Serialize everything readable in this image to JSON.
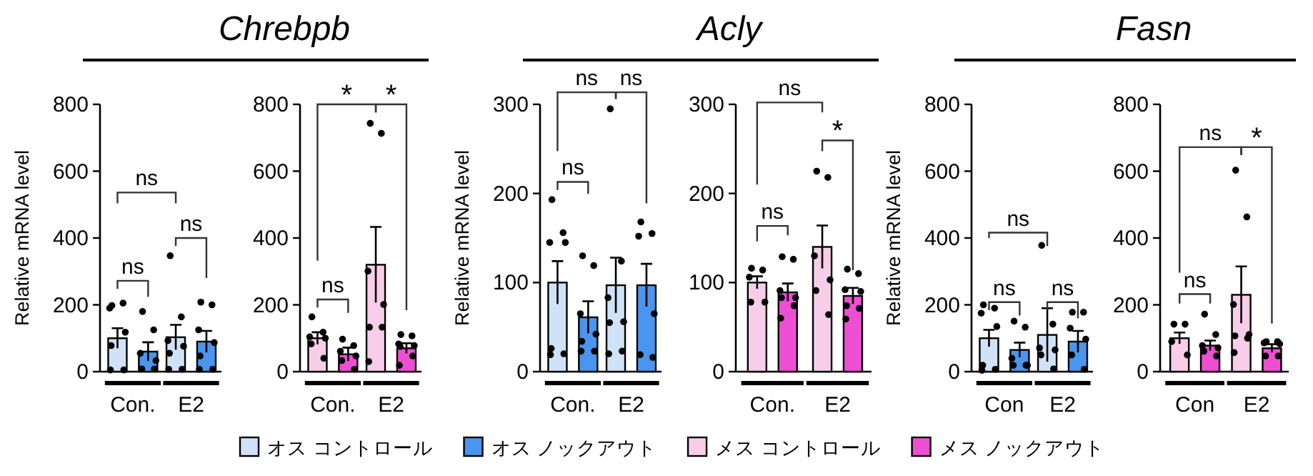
{
  "chart_data": [
    {
      "type": "other",
      "annotations": [
        "Chrebpb",
        "Acly",
        "Fasn"
      ]
    },
    {
      "type": "bar",
      "ylabel": "Relative mRNA level",
      "categories": [
        "Con.",
        "E2"
      ],
      "ylim": [
        0,
        800
      ],
      "yticks": [
        0,
        200,
        400,
        600,
        800
      ],
      "legend": "bottom",
      "annotations": [
        "ns",
        "ns",
        "ns"
      ],
      "series": [
        {
          "name": "オス コントロール",
          "type": "bar",
          "color": "#cfe2f7",
          "values": [
            100,
            103
          ],
          "errors": [
            30,
            37
          ]
        },
        {
          "name": "オス ノックアウト",
          "type": "bar",
          "color": "#4a95ee",
          "values": [
            60,
            90
          ],
          "errors": [
            28,
            32
          ]
        },
        {
          "type": "scatter",
          "color": "#000000",
          "x": [
            "Con.",
            "Con.",
            "Con.",
            "Con.",
            "Con.",
            "Con.",
            "Con.",
            "E2",
            "E2",
            "E2",
            "E2",
            "E2",
            "E2",
            "E2"
          ],
          "values": [
            198,
            205,
            190,
            118,
            78,
            5,
            5,
            347,
            164,
            93,
            76,
            55,
            7,
            7
          ]
        },
        {
          "type": "scatter",
          "color": "#000000",
          "x": [
            "Con.",
            "Con.",
            "Con.",
            "Con.",
            "Con.",
            "Con.",
            "E2",
            "E2",
            "E2",
            "E2",
            "E2",
            "E2",
            "E2"
          ],
          "values": [
            180,
            125,
            55,
            33,
            8,
            8,
            208,
            200,
            125,
            87,
            47,
            7,
            7
          ]
        }
      ]
    },
    {
      "type": "bar",
      "categories": [
        "Con.",
        "E2"
      ],
      "ylim": [
        0,
        800
      ],
      "yticks": [
        0,
        200,
        400,
        600,
        800
      ],
      "legend": "bottom",
      "annotations": [
        "*",
        "*",
        "ns"
      ],
      "series": [
        {
          "name": "メス コントロール",
          "type": "bar",
          "color": "#f8cde9",
          "values": [
            100,
            320
          ],
          "errors": [
            18,
            113
          ]
        },
        {
          "name": "メス ノックアウト",
          "type": "bar",
          "color": "#ee4fd2",
          "values": [
            52,
            70
          ],
          "errors": [
            20,
            15
          ]
        },
        {
          "type": "scatter",
          "color": "#000000",
          "x": [
            "Con.",
            "Con.",
            "Con.",
            "Con.",
            "Con.",
            "Con.",
            "E2",
            "E2",
            "E2",
            "E2",
            "E2",
            "E2",
            "E2"
          ],
          "values": [
            164,
            118,
            104,
            100,
            83,
            40,
            743,
            713,
            301,
            201,
            133,
            133,
            30
          ]
        },
        {
          "type": "scatter",
          "color": "#000000",
          "x": [
            "Con.",
            "Con.",
            "Con.",
            "Con.",
            "Con.",
            "Con.",
            "E2",
            "E2",
            "E2",
            "E2",
            "E2",
            "E2",
            "E2"
          ],
          "values": [
            97,
            78,
            61,
            47,
            33,
            7,
            111,
            107,
            83,
            78,
            75,
            47,
            19
          ]
        }
      ]
    },
    {
      "type": "bar",
      "ylabel": "Relative mRNA level",
      "categories": [
        "Con.",
        "E2"
      ],
      "ylim": [
        0,
        300
      ],
      "yticks": [
        0,
        100,
        200,
        300
      ],
      "legend": "bottom",
      "annotations": [
        "ns",
        "ns",
        "ns"
      ],
      "series": [
        {
          "name": "オス コントロール",
          "type": "bar",
          "color": "#cfe2f7",
          "values": [
            100,
            97
          ],
          "errors": [
            24,
            31
          ]
        },
        {
          "name": "オス ノックアウト",
          "type": "bar",
          "color": "#4a95ee",
          "values": [
            61,
            97
          ],
          "errors": [
            18,
            24
          ]
        },
        {
          "type": "scatter",
          "color": "#000000",
          "x": [
            "Con.",
            "Con.",
            "Con.",
            "Con.",
            "Con.",
            "Con.",
            "Con.",
            "E2",
            "E2",
            "E2",
            "E2",
            "E2",
            "E2",
            "E2"
          ],
          "values": [
            193,
            156,
            145,
            145,
            26,
            20,
            19,
            295,
            124,
            83,
            56,
            55,
            23,
            20
          ]
        },
        {
          "type": "scatter",
          "color": "#000000",
          "x": [
            "Con.",
            "Con.",
            "Con.",
            "Con.",
            "Con.",
            "Con.",
            "Con.",
            "E2",
            "E2",
            "E2",
            "E2",
            "E2",
            "E2"
          ],
          "values": [
            130,
            119,
            65,
            42,
            34,
            23,
            23,
            168,
            155,
            152,
            65,
            19,
            16
          ]
        }
      ]
    },
    {
      "type": "bar",
      "categories": [
        "Con.",
        "E2"
      ],
      "ylim": [
        0,
        300
      ],
      "yticks": [
        0,
        100,
        200,
        300
      ],
      "legend": "bottom",
      "annotations": [
        "ns",
        "*",
        "ns"
      ],
      "series": [
        {
          "name": "メス コントロール",
          "type": "bar",
          "color": "#f8cde9",
          "values": [
            100,
            140
          ],
          "errors": [
            7,
            24
          ]
        },
        {
          "name": "メス ノックアウト",
          "type": "bar",
          "color": "#ee4fd2",
          "values": [
            89,
            85
          ],
          "errors": [
            10,
            9
          ]
        },
        {
          "type": "scatter",
          "color": "#000000",
          "x": [
            "Con.",
            "Con.",
            "Con.",
            "Con.",
            "Con.",
            "E2",
            "E2",
            "E2",
            "E2",
            "E2",
            "E2"
          ],
          "values": [
            116,
            114,
            106,
            78,
            78,
            225,
            218,
            130,
            103,
            91,
            64
          ]
        },
        {
          "type": "scatter",
          "color": "#000000",
          "x": [
            "Con.",
            "Con.",
            "Con.",
            "Con.",
            "Con.",
            "Con.",
            "Con.",
            "E2",
            "E2",
            "E2",
            "E2",
            "E2",
            "E2",
            "E2"
          ],
          "values": [
            129,
            126,
            91,
            83,
            83,
            74,
            60,
            115,
            110,
            92,
            90,
            74,
            71,
            59
          ]
        }
      ]
    },
    {
      "type": "bar",
      "ylabel": "Relative mRNA level",
      "categories": [
        "Con",
        "E2"
      ],
      "ylim": [
        0,
        800
      ],
      "yticks": [
        0,
        200,
        400,
        600,
        800
      ],
      "legend": "bottom",
      "annotations": [
        "ns",
        "ns",
        "ns"
      ],
      "series": [
        {
          "name": "オス コントロール",
          "type": "bar",
          "color": "#cfe2f7",
          "values": [
            100,
            110
          ],
          "errors": [
            25,
            80
          ]
        },
        {
          "name": "オス ノックアウト",
          "type": "bar",
          "color": "#4a95ee",
          "values": [
            65,
            90
          ],
          "errors": [
            22,
            32
          ]
        },
        {
          "type": "scatter",
          "color": "#000000",
          "x": [
            "Con",
            "Con",
            "Con",
            "Con",
            "Con",
            "Con",
            "Con",
            "E2",
            "E2",
            "E2",
            "E2",
            "E2",
            "E2"
          ],
          "values": [
            200,
            190,
            175,
            135,
            19,
            7,
            4,
            378,
            142,
            71,
            65,
            50,
            8
          ]
        },
        {
          "type": "scatter",
          "color": "#000000",
          "x": [
            "Con",
            "Con",
            "Con",
            "Con",
            "Con",
            "Con",
            "E2",
            "E2",
            "E2",
            "E2",
            "E2",
            "E2"
          ],
          "values": [
            151,
            133,
            40,
            19,
            19,
            19,
            178,
            178,
            130,
            97,
            50,
            7
          ]
        }
      ]
    },
    {
      "type": "bar",
      "categories": [
        "Con",
        "E2"
      ],
      "ylim": [
        0,
        800
      ],
      "yticks": [
        0,
        200,
        400,
        600,
        800
      ],
      "legend": "bottom",
      "annotations": [
        "ns",
        "*",
        "ns"
      ],
      "series": [
        {
          "name": "メス コントロール",
          "type": "bar",
          "color": "#f8cde9",
          "values": [
            100,
            230
          ],
          "errors": [
            17,
            85
          ]
        },
        {
          "name": "メス ノックアウト",
          "type": "bar",
          "color": "#ee4fd2",
          "values": [
            78,
            70
          ],
          "errors": [
            15,
            12
          ]
        },
        {
          "type": "scatter",
          "color": "#000000",
          "x": [
            "Con",
            "Con",
            "Con",
            "Con",
            "E2",
            "E2",
            "E2",
            "E2",
            "E2",
            "E2",
            "E2"
          ],
          "values": [
            142,
            142,
            90,
            50,
            603,
            463,
            201,
            111,
            107,
            100,
            57
          ]
        },
        {
          "type": "scatter",
          "color": "#000000",
          "x": [
            "Con",
            "Con",
            "Con",
            "Con",
            "Con",
            "Con",
            "E2",
            "E2",
            "E2",
            "E2",
            "E2",
            "E2"
          ],
          "values": [
            172,
            111,
            78,
            71,
            61,
            47,
            90,
            90,
            86,
            83,
            47,
            47
          ]
        }
      ]
    }
  ]
}
